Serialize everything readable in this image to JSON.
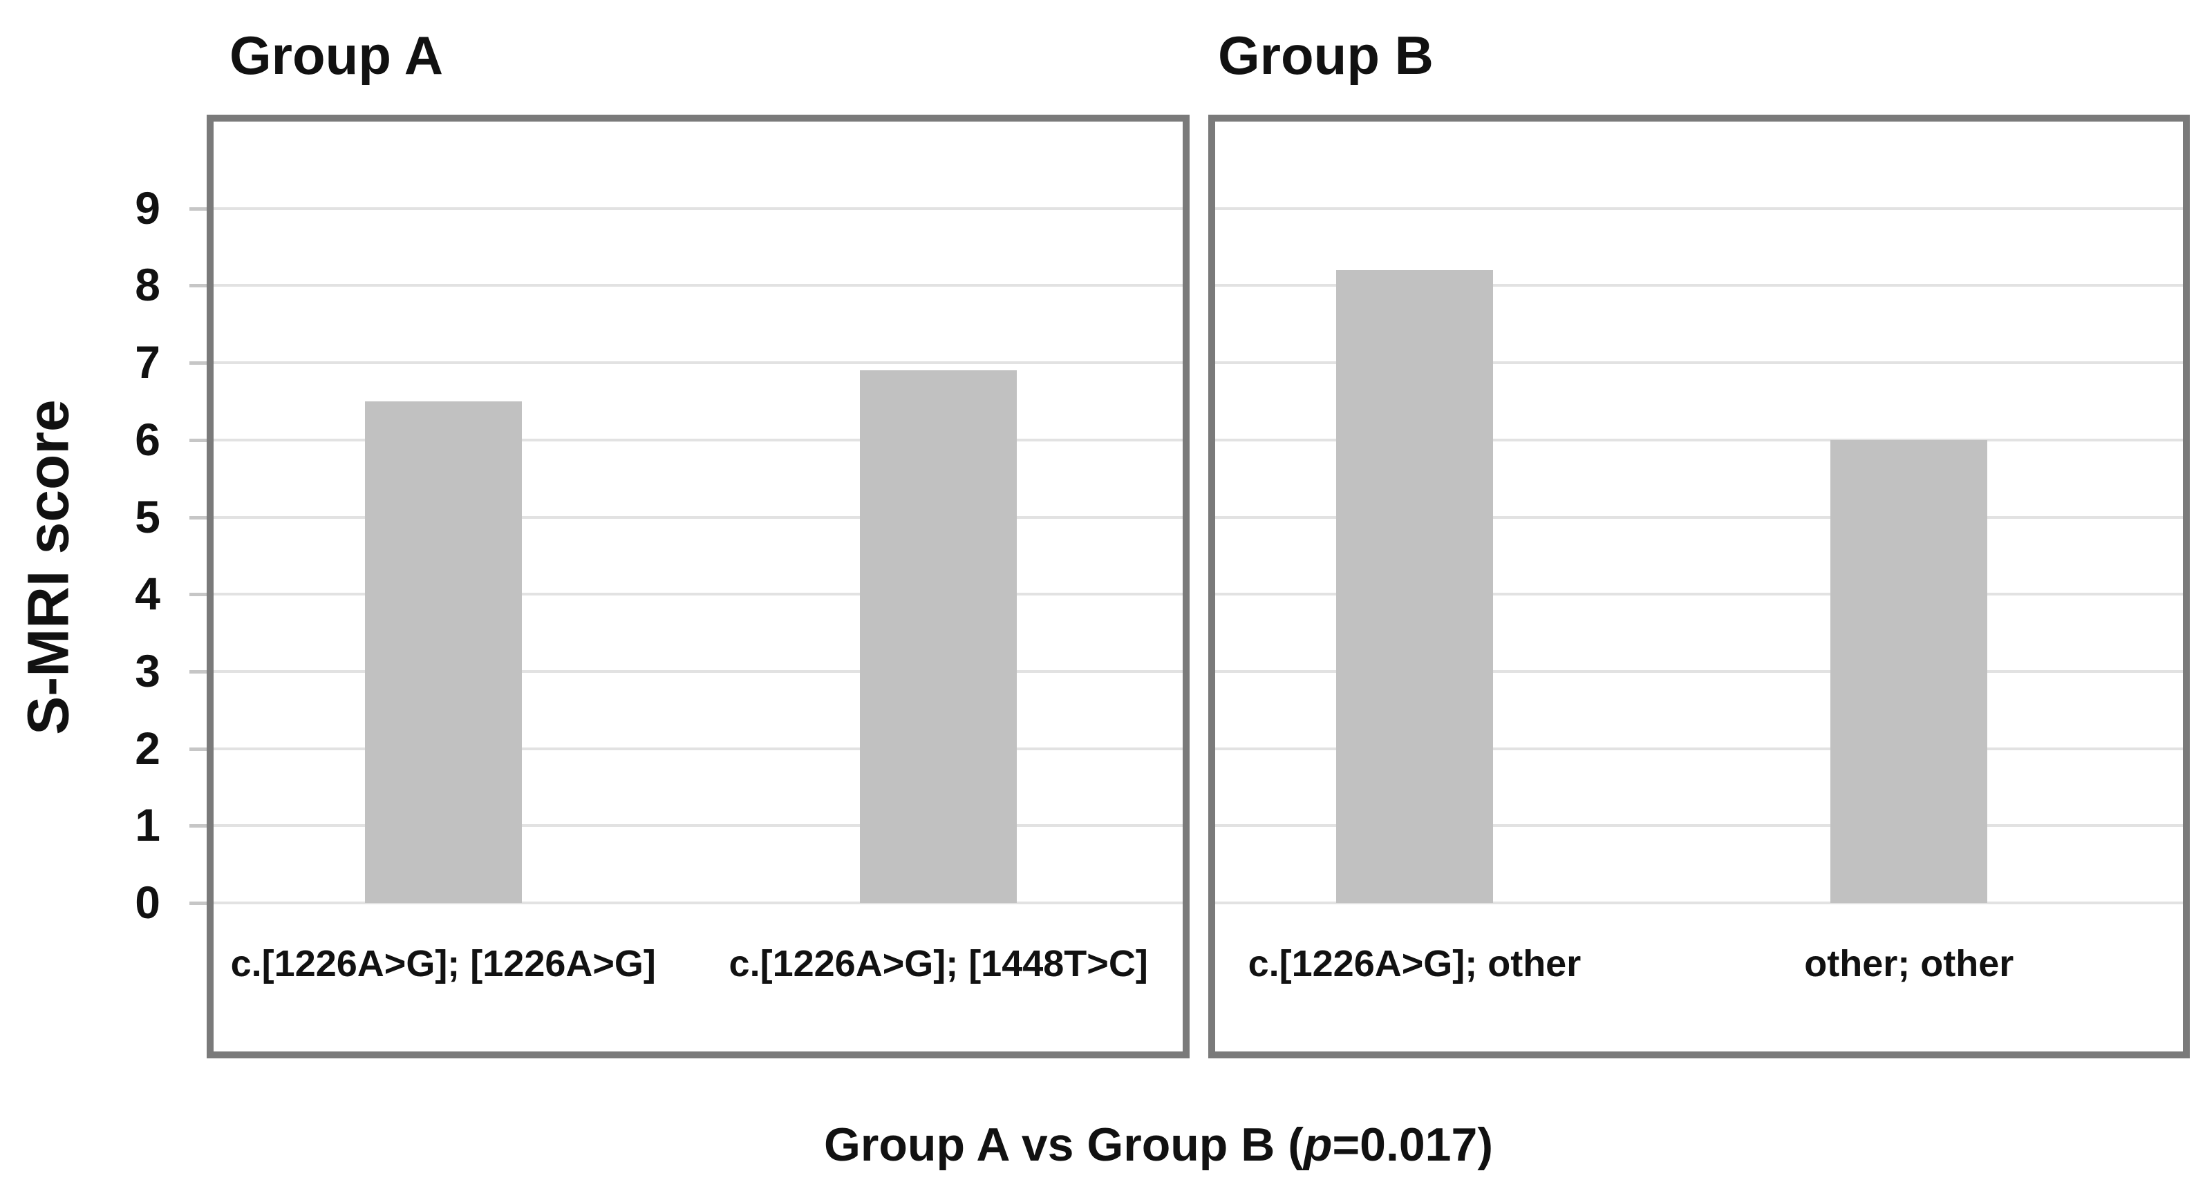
{
  "chart_data": {
    "type": "bar",
    "title": "Group A vs Group B (p=0.017)",
    "title_parts": {
      "prefix": "Group A vs Group B (",
      "italic": "p",
      "suffix": "=0.017)"
    },
    "ylabel": "S-MRI score",
    "xlabel": "",
    "ylim": [
      0,
      10.1
    ],
    "yticks": [
      0,
      1,
      2,
      3,
      4,
      5,
      6,
      7,
      8,
      9
    ],
    "grid": true,
    "legend": false,
    "colors": {
      "bar_fill": "#c1c1c1",
      "panel_border": "#7a7a7a",
      "gridline": "#e2e2e2",
      "tick_dash": "#c6c6c6",
      "text": "#111111"
    },
    "panels": [
      {
        "title": "Group A",
        "categories": [
          "c.[1226A>G]; [1226A>G]",
          "c.[1226A>G]; [1448T>C]"
        ],
        "values": [
          6.5,
          6.9
        ]
      },
      {
        "title": "Group B",
        "categories": [
          "c.[1226A>G]; other",
          "other; other"
        ],
        "values": [
          8.2,
          6.0
        ]
      }
    ]
  }
}
